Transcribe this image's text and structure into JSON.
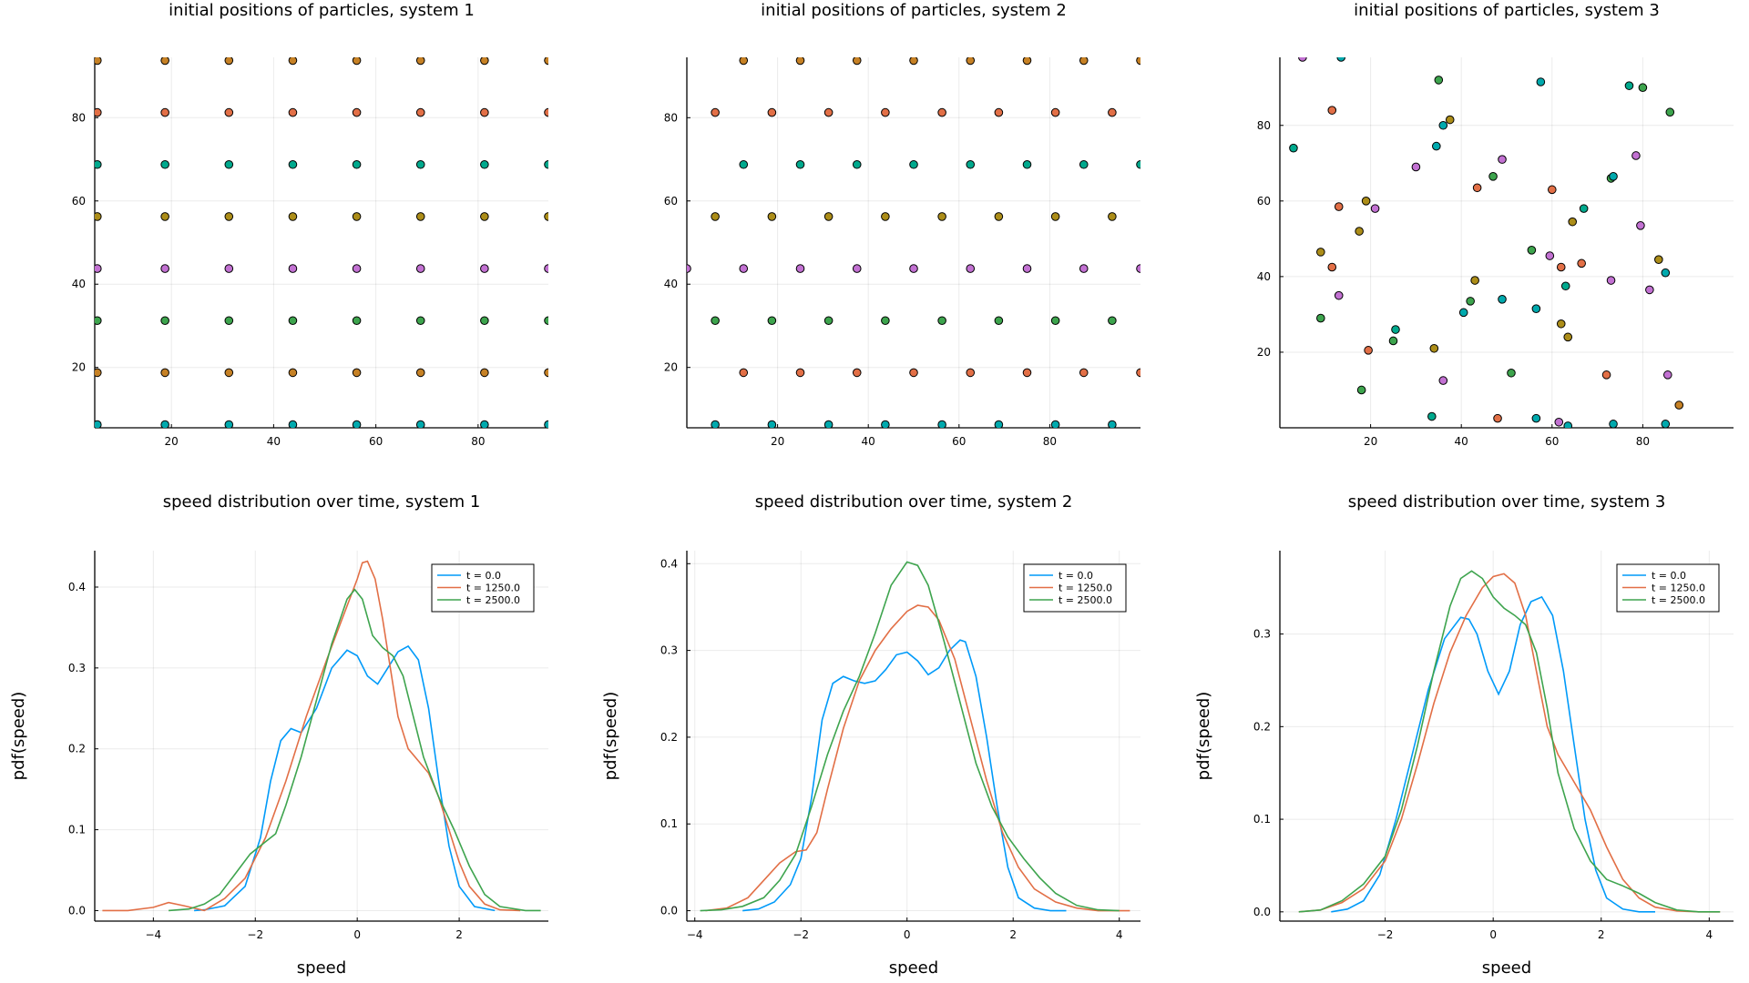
{
  "chart_data": [
    {
      "type": "scatter",
      "title": "initial positions of particles, system 1",
      "xlabel": "",
      "ylabel": "",
      "xlim": [
        5,
        93.75
      ],
      "ylim": [
        5.5,
        94.5
      ],
      "xticks": [
        20,
        40,
        60,
        80
      ],
      "yticks": [
        20,
        40,
        60,
        80
      ],
      "grid": true,
      "legend": "none",
      "point_style": "grid1",
      "grid_x": [
        5.5,
        18.75,
        31.25,
        43.75,
        56.25,
        68.75,
        81.25,
        93.75
      ],
      "grid_y": [
        6.25,
        18.75,
        31.25,
        43.75,
        56.25,
        68.75,
        81.25,
        93.75
      ],
      "row_colors": [
        "#00a9ad",
        "#c68125",
        "#3da44d",
        "#c271d2",
        "#ac8d18",
        "#00a98d",
        "#e26f46",
        "#c68125"
      ]
    },
    {
      "type": "scatter",
      "title": "initial positions of particles, system 2",
      "xlabel": "",
      "ylabel": "",
      "xlim": [
        0,
        100
      ],
      "ylim": [
        5.5,
        94.5
      ],
      "xticks": [
        20,
        40,
        60,
        80
      ],
      "yticks": [
        20,
        40,
        60,
        80
      ],
      "grid": true,
      "legend": "none",
      "point_style": "hex2",
      "rows": [
        {
          "y": 6.25,
          "x0": 6.25,
          "color": "#00a9ad"
        },
        {
          "y": 18.75,
          "x0": 12.5,
          "color": "#e26f46"
        },
        {
          "y": 31.25,
          "x0": 6.25,
          "color": "#3da44d"
        },
        {
          "y": 43.75,
          "x0": 0,
          "color": "#c271d2"
        },
        {
          "y": 56.25,
          "x0": 6.25,
          "color": "#ac8d18"
        },
        {
          "y": 68.75,
          "x0": 12.5,
          "color": "#00a98d"
        },
        {
          "y": 81.25,
          "x0": 6.25,
          "color": "#e26f46"
        },
        {
          "y": 93.75,
          "x0": 12.5,
          "color": "#c68125"
        }
      ],
      "step": 12.5
    },
    {
      "type": "scatter",
      "title": "initial positions of particles, system 3",
      "xlabel": "",
      "ylabel": "",
      "xlim": [
        0,
        100
      ],
      "ylim": [
        0,
        98
      ],
      "xticks": [
        20,
        40,
        60,
        80
      ],
      "yticks": [
        20,
        40,
        60,
        80
      ],
      "grid": true,
      "legend": "none",
      "point_style": "random",
      "points": [
        [
          5,
          98,
          "#c271d2"
        ],
        [
          13.5,
          98,
          "#00a9ad"
        ],
        [
          3,
          74,
          "#00a98d"
        ],
        [
          11.5,
          84,
          "#e26f46"
        ],
        [
          9,
          46.5,
          "#ac8d18"
        ],
        [
          11.5,
          42.5,
          "#e26f46"
        ],
        [
          9,
          29,
          "#3da44d"
        ],
        [
          13,
          35,
          "#c271d2"
        ],
        [
          13,
          58.5,
          "#e26f46"
        ],
        [
          17.5,
          52,
          "#ac8d18"
        ],
        [
          19,
          60,
          "#ac8d18"
        ],
        [
          21,
          58,
          "#c271d2"
        ],
        [
          19.5,
          20.5,
          "#e26f46"
        ],
        [
          18,
          10,
          "#3da44d"
        ],
        [
          25,
          23,
          "#3da44d"
        ],
        [
          25.5,
          26,
          "#00a98d"
        ],
        [
          30,
          69,
          "#c271d2"
        ],
        [
          34.5,
          74.5,
          "#00a9ad"
        ],
        [
          35,
          92,
          "#3da44d"
        ],
        [
          36,
          80,
          "#00a9ad"
        ],
        [
          37.5,
          81.5,
          "#ac8d18"
        ],
        [
          34,
          21,
          "#ac8d18"
        ],
        [
          33.5,
          3,
          "#00a98d"
        ],
        [
          36,
          12.5,
          "#c271d2"
        ],
        [
          40.5,
          30.5,
          "#00a9ad"
        ],
        [
          42,
          33.5,
          "#3da44d"
        ],
        [
          43,
          39,
          "#ac8d18"
        ],
        [
          43.5,
          63.5,
          "#e26f46"
        ],
        [
          47,
          66.5,
          "#3da44d"
        ],
        [
          49,
          71,
          "#c271d2"
        ],
        [
          49,
          34,
          "#00a9ad"
        ],
        [
          48,
          2.5,
          "#e26f46"
        ],
        [
          51,
          14.5,
          "#3da44d"
        ],
        [
          55.5,
          47,
          "#3da44d"
        ],
        [
          56.5,
          31.5,
          "#00a9ad"
        ],
        [
          57.5,
          91.5,
          "#00a9ad"
        ],
        [
          60,
          63,
          "#e26f46"
        ],
        [
          59.5,
          45.5,
          "#c271d2"
        ],
        [
          62,
          42.5,
          "#e26f46"
        ],
        [
          63,
          37.5,
          "#00a98d"
        ],
        [
          63.5,
          24,
          "#ac8d18"
        ],
        [
          64.5,
          54.5,
          "#ac8d18"
        ],
        [
          66.5,
          43.5,
          "#e26f46"
        ],
        [
          67,
          58,
          "#00a98d"
        ],
        [
          62,
          27.5,
          "#ac8d18"
        ],
        [
          61.5,
          1.5,
          "#c271d2"
        ],
        [
          56.5,
          2.5,
          "#00a9ad"
        ],
        [
          63.5,
          0.5,
          "#00a9ad"
        ],
        [
          72,
          14,
          "#e26f46"
        ],
        [
          73,
          66,
          "#3da44d"
        ],
        [
          73.5,
          66.5,
          "#00a9ad"
        ],
        [
          73,
          39,
          "#c271d2"
        ],
        [
          73.5,
          1,
          "#00a9ad"
        ],
        [
          78.5,
          72,
          "#c271d2"
        ],
        [
          77,
          90.5,
          "#00a98d"
        ],
        [
          80,
          90,
          "#3da44d"
        ],
        [
          79.5,
          53.5,
          "#c271d2"
        ],
        [
          81.5,
          36.5,
          "#c271d2"
        ],
        [
          83.5,
          44.5,
          "#ac8d18"
        ],
        [
          86,
          83.5,
          "#3da44d"
        ],
        [
          85,
          41,
          "#00a9ad"
        ],
        [
          85.5,
          14,
          "#c271d2"
        ],
        [
          88,
          6,
          "#c68125"
        ],
        [
          85,
          1,
          "#00a9ad"
        ]
      ]
    },
    {
      "type": "line",
      "title": "speed distribution over time, system 1",
      "xlabel": "speed",
      "ylabel": "pdf(speed)",
      "xlim": [
        -5.15,
        3.75
      ],
      "ylim": [
        -0.013,
        0.445
      ],
      "xticks": [
        -4,
        -2,
        0,
        2
      ],
      "yticks": [
        0.0,
        0.1,
        0.2,
        0.3,
        0.4
      ],
      "grid": true,
      "legend": "top-right",
      "series": [
        {
          "name": "t = 0.0",
          "color": "#009af9",
          "x": [
            -3.2,
            -3.0,
            -2.6,
            -2.2,
            -1.9,
            -1.7,
            -1.5,
            -1.3,
            -1.1,
            -0.8,
            -0.5,
            -0.2,
            0.0,
            0.2,
            0.4,
            0.6,
            0.8,
            1.0,
            1.2,
            1.4,
            1.6,
            1.8,
            2.0,
            2.3,
            2.7
          ],
          "y": [
            0.0,
            0.001,
            0.006,
            0.03,
            0.09,
            0.16,
            0.21,
            0.225,
            0.22,
            0.25,
            0.3,
            0.322,
            0.315,
            0.29,
            0.28,
            0.3,
            0.32,
            0.327,
            0.31,
            0.25,
            0.16,
            0.08,
            0.03,
            0.005,
            0.0
          ]
        },
        {
          "name": "t = 1250.0",
          "color": "#e26f46",
          "x": [
            -5.0,
            -4.5,
            -4.0,
            -3.7,
            -3.4,
            -3.0,
            -2.6,
            -2.2,
            -1.8,
            -1.4,
            -1.0,
            -0.6,
            -0.3,
            0.0,
            0.1,
            0.2,
            0.35,
            0.5,
            0.65,
            0.8,
            1.0,
            1.2,
            1.4,
            1.6,
            1.8,
            2.0,
            2.2,
            2.5,
            2.8,
            3.2
          ],
          "y": [
            0.0,
            0.0,
            0.004,
            0.01,
            0.006,
            0.0,
            0.015,
            0.04,
            0.09,
            0.16,
            0.24,
            0.31,
            0.36,
            0.41,
            0.43,
            0.432,
            0.41,
            0.36,
            0.3,
            0.24,
            0.2,
            0.185,
            0.17,
            0.14,
            0.1,
            0.06,
            0.03,
            0.008,
            0.001,
            0.0
          ]
        },
        {
          "name": "t = 2500.0",
          "color": "#3ea44e",
          "x": [
            -3.7,
            -3.3,
            -3.0,
            -2.7,
            -2.4,
            -2.1,
            -1.8,
            -1.6,
            -1.4,
            -1.1,
            -0.8,
            -0.5,
            -0.2,
            -0.05,
            0.1,
            0.3,
            0.5,
            0.7,
            0.9,
            1.1,
            1.3,
            1.6,
            1.9,
            2.2,
            2.5,
            2.8,
            3.3,
            3.6
          ],
          "y": [
            0.0,
            0.002,
            0.008,
            0.02,
            0.045,
            0.07,
            0.085,
            0.095,
            0.13,
            0.19,
            0.26,
            0.33,
            0.385,
            0.397,
            0.385,
            0.34,
            0.325,
            0.315,
            0.29,
            0.24,
            0.19,
            0.14,
            0.1,
            0.055,
            0.02,
            0.005,
            0.0,
            0.0
          ]
        }
      ]
    },
    {
      "type": "line",
      "title": "speed distribution over time, system 2",
      "xlabel": "speed",
      "ylabel": "pdf(speed)",
      "xlim": [
        -4.15,
        4.4
      ],
      "ylim": [
        -0.012,
        0.415
      ],
      "xticks": [
        -4,
        -2,
        0,
        2,
        4
      ],
      "yticks": [
        0.0,
        0.1,
        0.2,
        0.3,
        0.4
      ],
      "grid": true,
      "legend": "top-right",
      "series": [
        {
          "name": "t = 0.0",
          "color": "#009af9",
          "x": [
            -3.1,
            -2.8,
            -2.5,
            -2.2,
            -2.0,
            -1.8,
            -1.6,
            -1.4,
            -1.2,
            -1.0,
            -0.8,
            -0.6,
            -0.4,
            -0.2,
            0.0,
            0.2,
            0.4,
            0.6,
            0.8,
            1.0,
            1.1,
            1.3,
            1.5,
            1.7,
            1.9,
            2.1,
            2.4,
            2.7,
            3.0
          ],
          "y": [
            0.0,
            0.002,
            0.01,
            0.03,
            0.06,
            0.13,
            0.22,
            0.262,
            0.27,
            0.265,
            0.262,
            0.265,
            0.278,
            0.295,
            0.298,
            0.288,
            0.272,
            0.28,
            0.3,
            0.312,
            0.31,
            0.27,
            0.2,
            0.12,
            0.05,
            0.015,
            0.003,
            0.0,
            0.0
          ]
        },
        {
          "name": "t = 1250.0",
          "color": "#e26f46",
          "x": [
            -3.8,
            -3.4,
            -3.0,
            -2.7,
            -2.4,
            -2.1,
            -1.9,
            -1.7,
            -1.5,
            -1.2,
            -0.9,
            -0.6,
            -0.3,
            0.0,
            0.2,
            0.4,
            0.6,
            0.9,
            1.2,
            1.5,
            1.8,
            2.1,
            2.4,
            2.8,
            3.2,
            3.6,
            4.2
          ],
          "y": [
            0.0,
            0.003,
            0.015,
            0.035,
            0.055,
            0.068,
            0.07,
            0.09,
            0.14,
            0.21,
            0.265,
            0.3,
            0.325,
            0.345,
            0.352,
            0.35,
            0.335,
            0.29,
            0.22,
            0.15,
            0.09,
            0.05,
            0.025,
            0.01,
            0.003,
            0.0,
            0.0
          ]
        },
        {
          "name": "t = 2500.0",
          "color": "#3ea44e",
          "x": [
            -3.9,
            -3.5,
            -3.1,
            -2.7,
            -2.4,
            -2.1,
            -1.8,
            -1.5,
            -1.2,
            -0.9,
            -0.6,
            -0.3,
            0.0,
            0.2,
            0.4,
            0.7,
            1.0,
            1.3,
            1.6,
            1.9,
            2.2,
            2.5,
            2.8,
            3.2,
            3.6,
            4.0
          ],
          "y": [
            0.0,
            0.001,
            0.005,
            0.015,
            0.035,
            0.065,
            0.12,
            0.18,
            0.23,
            0.27,
            0.32,
            0.375,
            0.402,
            0.398,
            0.375,
            0.31,
            0.24,
            0.17,
            0.12,
            0.085,
            0.06,
            0.038,
            0.02,
            0.006,
            0.001,
            0.0
          ]
        }
      ]
    },
    {
      "type": "line",
      "title": "speed distribution over time, system 3",
      "xlabel": "speed",
      "ylabel": "pdf(speed)",
      "xlim": [
        -3.95,
        4.45
      ],
      "ylim": [
        -0.01,
        0.39
      ],
      "xticks": [
        -2,
        0,
        2,
        4
      ],
      "yticks": [
        0.0,
        0.1,
        0.2,
        0.3
      ],
      "grid": true,
      "legend": "top-right",
      "series": [
        {
          "name": "t = 0.0",
          "color": "#009af9",
          "x": [
            -3.0,
            -2.7,
            -2.4,
            -2.1,
            -1.8,
            -1.5,
            -1.2,
            -0.9,
            -0.6,
            -0.45,
            -0.3,
            -0.1,
            0.1,
            0.3,
            0.5,
            0.7,
            0.9,
            1.1,
            1.3,
            1.5,
            1.7,
            1.9,
            2.1,
            2.4,
            2.7,
            3.0
          ],
          "y": [
            0.0,
            0.003,
            0.012,
            0.04,
            0.1,
            0.17,
            0.24,
            0.295,
            0.318,
            0.316,
            0.3,
            0.26,
            0.235,
            0.26,
            0.31,
            0.335,
            0.34,
            0.32,
            0.26,
            0.18,
            0.1,
            0.045,
            0.015,
            0.003,
            0.0,
            0.0
          ]
        },
        {
          "name": "t = 1250.0",
          "color": "#e26f46",
          "x": [
            -3.6,
            -3.2,
            -2.8,
            -2.4,
            -2.0,
            -1.7,
            -1.4,
            -1.1,
            -0.8,
            -0.5,
            -0.2,
            0.0,
            0.2,
            0.4,
            0.6,
            0.8,
            1.0,
            1.2,
            1.5,
            1.8,
            2.1,
            2.4,
            2.7,
            3.0,
            3.4,
            3.8,
            4.2
          ],
          "y": [
            0.0,
            0.002,
            0.01,
            0.025,
            0.055,
            0.1,
            0.16,
            0.225,
            0.28,
            0.32,
            0.35,
            0.362,
            0.365,
            0.355,
            0.32,
            0.26,
            0.2,
            0.17,
            0.14,
            0.11,
            0.07,
            0.035,
            0.015,
            0.005,
            0.001,
            0.0,
            0.0
          ]
        },
        {
          "name": "t = 2500.0",
          "color": "#3ea44e",
          "x": [
            -3.6,
            -3.2,
            -2.8,
            -2.4,
            -2.0,
            -1.7,
            -1.4,
            -1.1,
            -0.8,
            -0.6,
            -0.4,
            -0.2,
            0.0,
            0.2,
            0.4,
            0.6,
            0.8,
            1.0,
            1.2,
            1.5,
            1.8,
            2.1,
            2.4,
            2.7,
            3.0,
            3.4,
            3.8,
            4.2
          ],
          "y": [
            0.0,
            0.002,
            0.012,
            0.03,
            0.06,
            0.11,
            0.18,
            0.26,
            0.33,
            0.36,
            0.368,
            0.36,
            0.34,
            0.328,
            0.32,
            0.31,
            0.28,
            0.22,
            0.15,
            0.09,
            0.055,
            0.035,
            0.028,
            0.02,
            0.01,
            0.002,
            0.0,
            0.0
          ]
        }
      ]
    }
  ]
}
